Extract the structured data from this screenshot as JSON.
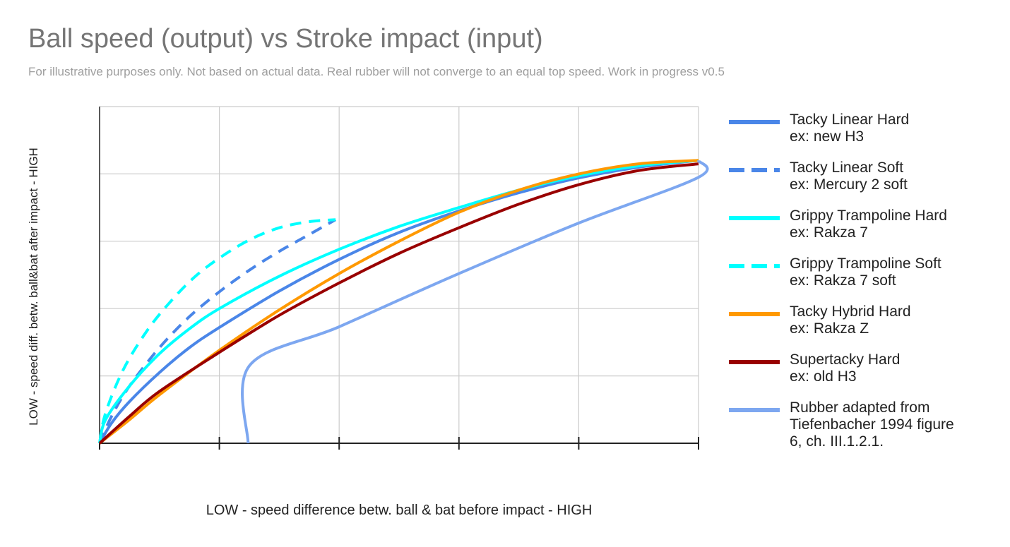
{
  "chart_data": {
    "type": "line",
    "title": "Ball speed (output) vs Stroke impact (input)",
    "subtitle": "For illustrative purposes only. Not based on actual data. Real rubber will not converge to an equal top speed. Work in progress v0.5",
    "xlabel": "LOW - speed difference betw. ball & bat before impact - HIGH",
    "ylabel": "LOW - speed diff. betw. ball&bat after impact - HIGH",
    "xlim": [
      0,
      5
    ],
    "ylim": [
      0,
      5
    ],
    "grid": true,
    "legend_position": "right",
    "series": [
      {
        "name": "Tacky Linear Hard",
        "example": "ex: new H3",
        "color": "#4a86e8",
        "dash": "solid",
        "points": [
          [
            0,
            0
          ],
          [
            0.1,
            0.3
          ],
          [
            0.25,
            0.62
          ],
          [
            0.5,
            1.05
          ],
          [
            0.75,
            1.42
          ],
          [
            1,
            1.72
          ],
          [
            1.5,
            2.26
          ],
          [
            2,
            2.73
          ],
          [
            2.5,
            3.13
          ],
          [
            3,
            3.45
          ],
          [
            3.5,
            3.72
          ],
          [
            4,
            3.94
          ],
          [
            4.5,
            4.1
          ],
          [
            5,
            4.2
          ]
        ]
      },
      {
        "name": "Tacky Linear Soft",
        "example": "ex: Mercury 2 soft",
        "color": "#4a86e8",
        "dash": "dashed",
        "points": [
          [
            0,
            0
          ],
          [
            0.1,
            0.4
          ],
          [
            0.25,
            0.85
          ],
          [
            0.5,
            1.42
          ],
          [
            0.75,
            1.88
          ],
          [
            1,
            2.25
          ],
          [
            1.25,
            2.57
          ],
          [
            1.5,
            2.85
          ],
          [
            1.75,
            3.1
          ],
          [
            1.97,
            3.32
          ]
        ]
      },
      {
        "name": "Grippy Trampoline Hard",
        "example": "ex: Rakza 7",
        "color": "#00ffff",
        "dash": "solid",
        "points": [
          [
            0,
            0
          ],
          [
            0.05,
            0.35
          ],
          [
            0.25,
            0.85
          ],
          [
            0.5,
            1.33
          ],
          [
            0.75,
            1.7
          ],
          [
            1,
            2
          ],
          [
            1.5,
            2.48
          ],
          [
            2,
            2.88
          ],
          [
            2.5,
            3.22
          ],
          [
            3,
            3.5
          ],
          [
            3.5,
            3.76
          ],
          [
            4,
            3.97
          ],
          [
            4.5,
            4.12
          ],
          [
            5,
            4.2
          ]
        ]
      },
      {
        "name": "Grippy Trampoline Soft",
        "example": "ex: Rakza 7 soft",
        "color": "#00ffff",
        "dash": "dashed",
        "points": [
          [
            0,
            0
          ],
          [
            0.05,
            0.45
          ],
          [
            0.2,
            1.1
          ],
          [
            0.4,
            1.68
          ],
          [
            0.6,
            2.12
          ],
          [
            0.8,
            2.48
          ],
          [
            1,
            2.75
          ],
          [
            1.25,
            3.02
          ],
          [
            1.5,
            3.2
          ],
          [
            1.75,
            3.29
          ],
          [
            1.97,
            3.32
          ]
        ]
      },
      {
        "name": "Tacky Hybrid Hard",
        "example": "ex: Rakza Z",
        "color": "#ff9900",
        "dash": "solid",
        "points": [
          [
            0,
            0
          ],
          [
            0.25,
            0.35
          ],
          [
            0.5,
            0.72
          ],
          [
            1,
            1.38
          ],
          [
            1.5,
            1.98
          ],
          [
            2,
            2.52
          ],
          [
            2.5,
            3
          ],
          [
            3,
            3.43
          ],
          [
            3.5,
            3.76
          ],
          [
            4,
            4
          ],
          [
            4.5,
            4.15
          ],
          [
            5,
            4.2
          ]
        ]
      },
      {
        "name": "Supertacky Hard",
        "example": "ex: old H3",
        "color": "#990000",
        "dash": "solid",
        "points": [
          [
            0,
            0
          ],
          [
            0.25,
            0.4
          ],
          [
            0.5,
            0.77
          ],
          [
            1,
            1.35
          ],
          [
            1.5,
            1.9
          ],
          [
            2,
            2.38
          ],
          [
            2.5,
            2.82
          ],
          [
            3,
            3.2
          ],
          [
            3.5,
            3.55
          ],
          [
            4,
            3.84
          ],
          [
            4.5,
            4.05
          ],
          [
            5,
            4.15
          ]
        ]
      },
      {
        "name": "Rubber adapted from",
        "example": "Tiefenbacher 1994 figure",
        "example2": "6, ch. III.1.2.1.",
        "color": "#7da7f0",
        "dash": "solid",
        "points": [
          [
            1.24,
            0
          ],
          [
            1.25,
            1.15
          ],
          [
            2,
            1.73
          ],
          [
            3,
            2.52
          ],
          [
            4,
            3.27
          ],
          [
            5,
            3.95
          ],
          [
            5,
            4.2
          ]
        ]
      }
    ]
  }
}
